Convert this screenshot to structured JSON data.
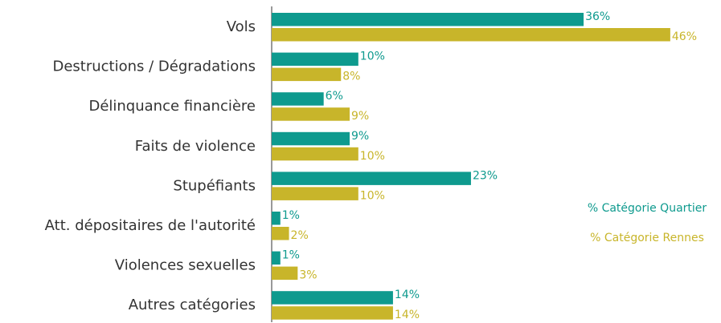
{
  "chart_data": {
    "type": "bar",
    "orientation": "horizontal",
    "categories": [
      "Vols",
      "Destructions / Dégradations",
      "Délinquance financière",
      "Faits de violence",
      "Stupéfiants",
      "Att. dépositaires de l'autorité",
      "Violences sexuelles",
      "Autres catégories"
    ],
    "series": [
      {
        "name": "% Catégorie Quartier",
        "color": "#0e9a8e",
        "values": [
          36,
          10,
          6,
          9,
          23,
          1,
          1,
          14
        ],
        "value_labels": [
          "36%",
          "10%",
          "6%",
          "9%",
          "23%",
          "1%",
          "1%",
          "14%"
        ]
      },
      {
        "name": "% Catégorie Rennes",
        "color": "#c8b52a",
        "values": [
          46,
          8,
          9,
          10,
          10,
          2,
          3,
          14
        ],
        "value_labels": [
          "46%",
          "8%",
          "9%",
          "10%",
          "10%",
          "2%",
          "3%",
          "14%"
        ]
      }
    ]
  }
}
